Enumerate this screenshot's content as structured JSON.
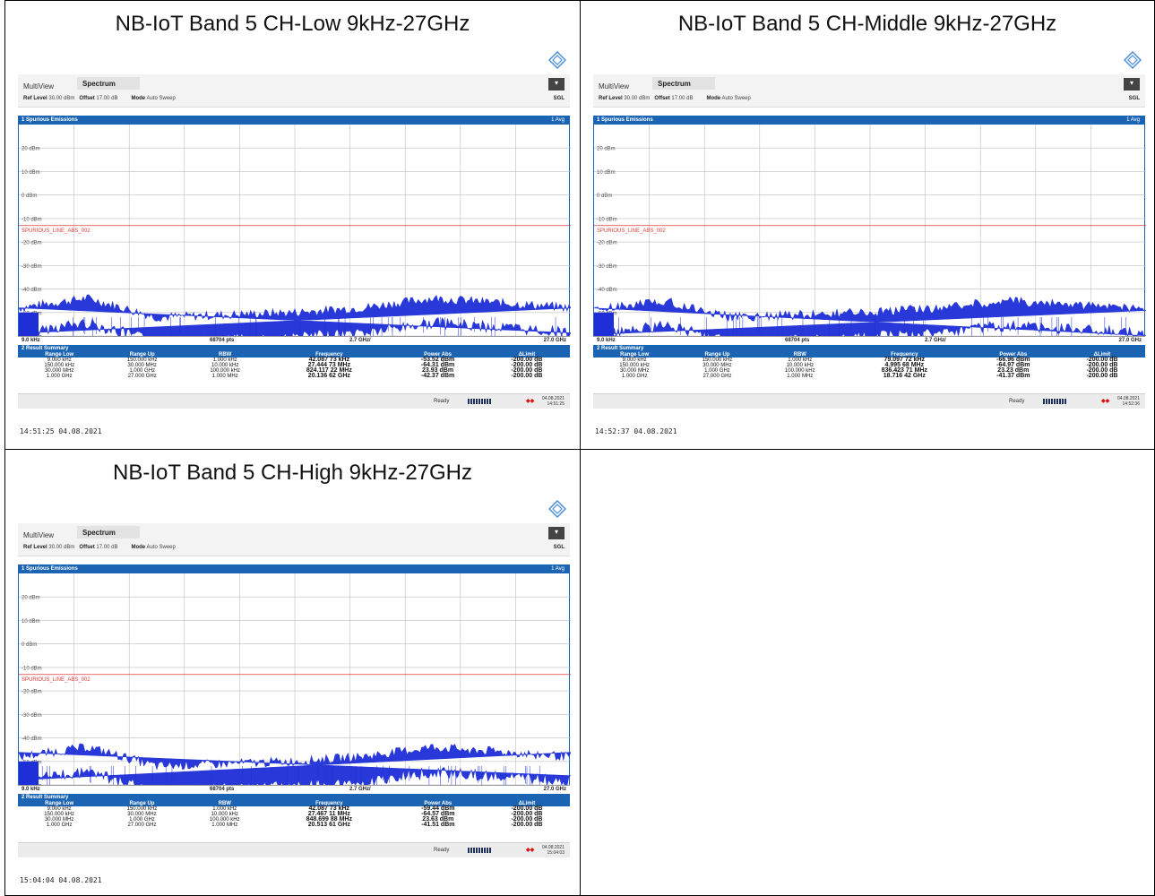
{
  "panels": [
    {
      "title": "NB-IoT Band 5 CH-Low 9kHz-27GHz",
      "topbar": {
        "multiview": "MultiView",
        "tab": "Spectrum",
        "ref_level_label": "Ref Level",
        "ref_level": "30.00 dBm",
        "offset_label": "Offset",
        "offset": "17.00 dB",
        "mode_label": "Mode",
        "mode": "Auto Sweep",
        "sgl": "SGL"
      },
      "panel_head": "1 Spurious Emissions",
      "avg": "1 Avg",
      "y_ticks": [
        "20 dBm",
        "10 dBm",
        "0 dBm",
        "-10 dBm",
        "-20 dBm",
        "-30 dBm",
        "-40 dBm",
        "-50 dBm",
        "-60 dBm"
      ],
      "limit_label": "SPURIOUS_LINE_ABS_002",
      "axis": {
        "start": "9.0 kHz",
        "pts": "68704 pts",
        "div": "2.7 GHz/",
        "stop": "27.0 GHz"
      },
      "result_title": "2 Result Summary",
      "headers": [
        "Range Low",
        "Range Up",
        "RBW",
        "Frequency",
        "Power Abs",
        "ΔLimit"
      ],
      "rows": [
        [
          "9.000 kHz",
          "150.000 kHz",
          "1.000 kHz",
          "42.087 73 kHz",
          "-53.52 dBm",
          "-200.00 dB"
        ],
        [
          "150.000 kHz",
          "30.000 MHz",
          "10.000 kHz",
          "27.444 73 MHz",
          "-64.31 dBm",
          "-200.00 dB"
        ],
        [
          "30.000 MHz",
          "1.000 GHz",
          "100.000 kHz",
          "824.117 22 MHz",
          "23.93 dBm",
          "-200.00 dB"
        ],
        [
          "1.000 GHz",
          "27.000 GHz",
          "1.000 MHz",
          "20.136 62 GHz",
          "-42.37 dBm",
          "-200.00 dB"
        ]
      ],
      "status": {
        "ready": "Ready",
        "date": "04.08.2021",
        "time": "14:51:25"
      },
      "footer": "14:51:25  04.08.2021"
    },
    {
      "title": "NB-IoT Band 5 CH-Middle 9kHz-27GHz",
      "topbar": {
        "multiview": "MultiView",
        "tab": "Spectrum",
        "ref_level_label": "Ref Level",
        "ref_level": "30.00 dBm",
        "offset_label": "Offset",
        "offset": "17.00 dB",
        "mode_label": "Mode",
        "mode": "Auto Sweep",
        "sgl": "SGL"
      },
      "panel_head": "1 Spurious Emissions",
      "avg": "1 Avg",
      "y_ticks": [
        "20 dBm",
        "10 dBm",
        "0 dBm",
        "-10 dBm",
        "-20 dBm",
        "-30 dBm",
        "-40 dBm",
        "-50 dBm",
        "-60 dBm"
      ],
      "limit_label": "SPURIOUS_LINE_ABS_002",
      "axis": {
        "start": "9.0 kHz",
        "pts": "68704 pts",
        "div": "2.7 GHz/",
        "stop": "27.0 GHz"
      },
      "result_title": "2 Result Summary",
      "headers": [
        "Range Low",
        "Range Up",
        "RBW",
        "Frequency",
        "Power Abs",
        "ΔLimit"
      ],
      "rows": [
        [
          "9.000 kHz",
          "150.000 kHz",
          "1.000 kHz",
          "79.097 72 kHz",
          "-66.96 dBm",
          "-200.00 dB"
        ],
        [
          "150.000 kHz",
          "30.000 MHz",
          "10.000 kHz",
          "4.995 68 MHz",
          "-64.97 dBm",
          "-200.00 dB"
        ],
        [
          "30.000 MHz",
          "1.000 GHz",
          "100.000 kHz",
          "836.423 71 MHz",
          "23.23 dBm",
          "-200.00 dB"
        ],
        [
          "1.000 GHz",
          "27.000 GHz",
          "1.000 MHz",
          "18.716 42 GHz",
          "-41.37 dBm",
          "-200.00 dB"
        ]
      ],
      "status": {
        "ready": "Ready",
        "date": "04.08.2021",
        "time": "14:52:36"
      },
      "footer": "14:52:37  04.08.2021"
    },
    {
      "title": "NB-IoT Band 5 CH-High 9kHz-27GHz",
      "topbar": {
        "multiview": "MultiView",
        "tab": "Spectrum",
        "ref_level_label": "Ref Level",
        "ref_level": "30.00 dBm",
        "offset_label": "Offset",
        "offset": "17.00 dB",
        "mode_label": "Mode",
        "mode": "Auto Sweep",
        "sgl": "SGL"
      },
      "panel_head": "1 Spurious Emissions",
      "avg": "1 Avg",
      "y_ticks": [
        "20 dBm",
        "10 dBm",
        "0 dBm",
        "-10 dBm",
        "-20 dBm",
        "-30 dBm",
        "-40 dBm",
        "-50 dBm",
        "-60 dBm"
      ],
      "limit_label": "SPURIOUS_LINE_ABS_002",
      "axis": {
        "start": "9.0 kHz",
        "pts": "68704 pts",
        "div": "2.7 GHz/",
        "stop": "27.0 GHz"
      },
      "result_title": "2 Result Summary",
      "headers": [
        "Range Low",
        "Range Up",
        "RBW",
        "Frequency",
        "Power Abs",
        "ΔLimit"
      ],
      "rows": [
        [
          "9.000 kHz",
          "150.000 kHz",
          "1.000 kHz",
          "42.087 73 kHz",
          "-59.44 dBm",
          "-200.00 dB"
        ],
        [
          "150.000 kHz",
          "30.000 MHz",
          "10.000 kHz",
          "27.467 11 MHz",
          "-64.57 dBm",
          "-200.00 dB"
        ],
        [
          "30.000 MHz",
          "1.000 GHz",
          "100.000 kHz",
          "848.699 88 MHz",
          "23.63 dBm",
          "-200.00 dB"
        ],
        [
          "1.000 GHz",
          "27.000 GHz",
          "1.000 MHz",
          "20.513 61 GHz",
          "-41.51 dBm",
          "-200.00 dB"
        ]
      ],
      "status": {
        "ready": "Ready",
        "date": "04.08.2021",
        "time": "15:04:03"
      },
      "footer": "15:04:04  04.08.2021"
    }
  ],
  "colors": {
    "accent": "#1b64b4",
    "trace": "#1e2fd8",
    "limit": "#e23a3a"
  },
  "chart_data": [
    {
      "type": "line",
      "title": "NB-IoT Band 5 CH-Low 9kHz-27GHz",
      "ylabel": "dBm",
      "x_range": [
        "9.0 kHz",
        "27.0 GHz"
      ],
      "ylim": [
        -60,
        30
      ],
      "limit_line": -13,
      "noise_floor_dbm": [
        -52,
        -48,
        -56,
        -55,
        -54,
        -52,
        -48,
        -50,
        -52
      ]
    },
    {
      "type": "line",
      "title": "NB-IoT Band 5 CH-Middle 9kHz-27GHz",
      "ylabel": "dBm",
      "x_range": [
        "9.0 kHz",
        "27.0 GHz"
      ],
      "ylim": [
        -60,
        30
      ],
      "limit_line": -13,
      "noise_floor_dbm": [
        -53,
        -49,
        -56,
        -55,
        -54,
        -52,
        -49,
        -51,
        -52
      ]
    },
    {
      "type": "line",
      "title": "NB-IoT Band 5 CH-High 9kHz-27GHz",
      "ylabel": "dBm",
      "x_range": [
        "9.0 kHz",
        "27.0 GHz"
      ],
      "ylim": [
        -60,
        30
      ],
      "limit_line": -13,
      "noise_floor_dbm": [
        -52,
        -48,
        -56,
        -55,
        -54,
        -52,
        -48,
        -50,
        -52
      ]
    }
  ]
}
